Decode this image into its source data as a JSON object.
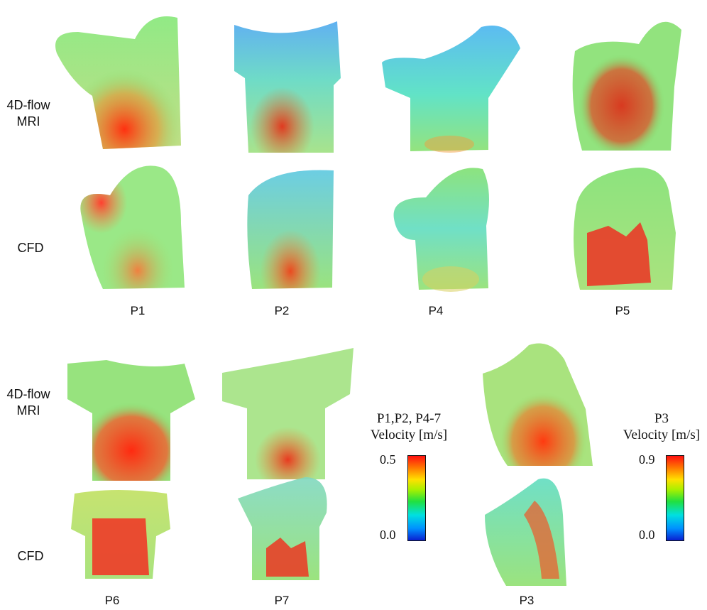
{
  "row_labels": {
    "mri": "4D-flow\nMRI",
    "cfd": "CFD"
  },
  "patients_top": [
    "P1",
    "P2",
    "P4",
    "P5"
  ],
  "patients_bottom": [
    "P6",
    "P7",
    "P3"
  ],
  "colorbars": [
    {
      "title": "P1,P2, P4-7\nVelocity [m/s]",
      "max": "0.5",
      "min": "0.0"
    },
    {
      "title": "P3\nVelocity [m/s]",
      "max": "0.9",
      "min": "0.0"
    }
  ],
  "colors": {
    "low": "#0a1fd0",
    "mid_low": "#00e0e0",
    "mid": "#20e040",
    "mid_high": "#ffe000",
    "high": "#ff1010"
  }
}
